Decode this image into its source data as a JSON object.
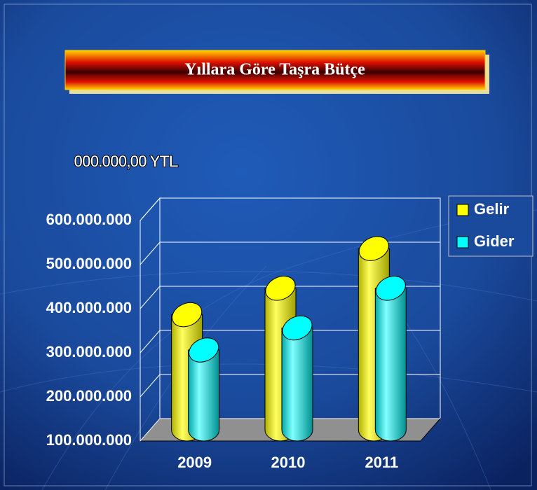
{
  "chart_data": {
    "type": "bar",
    "title": "Yıllara Göre Taşra Bütçe",
    "unit_label": "000.000,00 YTL",
    "categories": [
      "2009",
      "2010",
      "2011"
    ],
    "series": [
      {
        "name": "Gelir",
        "color": "#ffff00",
        "values": [
          380000000,
          440000000,
          530000000
        ]
      },
      {
        "name": "Gider",
        "color": "#00ffff",
        "values": [
          300000000,
          350000000,
          440000000
        ]
      }
    ],
    "ylim": [
      100000000,
      600000000
    ],
    "yticks": [
      {
        "value": 100000000,
        "label": "100.000.000"
      },
      {
        "value": 200000000,
        "label": "200.000.000"
      },
      {
        "value": 300000000,
        "label": "300.000.000"
      },
      {
        "value": 400000000,
        "label": "400.000.000"
      },
      {
        "value": 500000000,
        "label": "500.000.000"
      },
      {
        "value": 600000000,
        "label": "600.000.000"
      }
    ],
    "grid": true,
    "legend": "top-right",
    "floor_color": "#909090"
  }
}
